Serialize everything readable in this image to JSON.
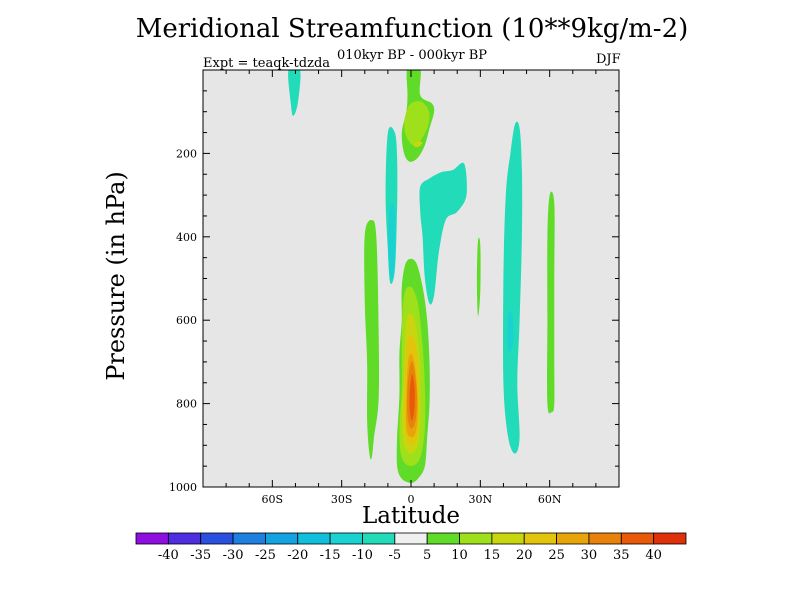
{
  "chart_data": {
    "type": "heatmap",
    "title": "Meridional Streamfunction (10**9kg/m-2)",
    "subtitle": "010kyr BP - 000kyr BP",
    "experiment_label": "Expt = teaqk-tdzda",
    "season_label": "DJF",
    "xlabel": "Latitude",
    "ylabel": "Pressure (in hPa)",
    "xlim": [
      -90,
      90
    ],
    "ylim": [
      1000,
      0
    ],
    "x_ticks": [
      {
        "value": -60,
        "label": "60S"
      },
      {
        "value": -30,
        "label": "30S"
      },
      {
        "value": 0,
        "label": "0"
      },
      {
        "value": 30,
        "label": "30N"
      },
      {
        "value": 60,
        "label": "60N"
      }
    ],
    "y_ticks": [
      {
        "value": 200,
        "label": "200"
      },
      {
        "value": 400,
        "label": "400"
      },
      {
        "value": 600,
        "label": "600"
      },
      {
        "value": 800,
        "label": "800"
      },
      {
        "value": 1000,
        "label": "1000"
      }
    ],
    "background_color": "#e6e6e6",
    "colorbar": {
      "colors": [
        "#8e0fe0",
        "#4e2ee0",
        "#2a50e0",
        "#1f7fe0",
        "#13a3e0",
        "#0fbfdc",
        "#1ad2d2",
        "#22dbb8",
        "#f0f0f0",
        "#5fdb28",
        "#9ee019",
        "#c8d60f",
        "#e2c40a",
        "#e8a50a",
        "#e8820a",
        "#e85a0a",
        "#e0300a"
      ],
      "labels": [
        "-40",
        "-35",
        "-30",
        "-25",
        "-20",
        "-15",
        "-10",
        "-5",
        "5",
        "10",
        "15",
        "20",
        "25",
        "30",
        "35",
        "40"
      ]
    },
    "contours": [
      {
        "value": -5,
        "label": "upper polar cell",
        "points": [
          [
            -53,
            0
          ],
          [
            -48,
            0
          ],
          [
            -49,
            80
          ],
          [
            -51,
            110
          ],
          [
            -52,
            80
          ]
        ]
      },
      {
        "value": 5,
        "label": "upper tropical plume",
        "points": [
          [
            -1.5,
            -5
          ],
          [
            4,
            -5
          ],
          [
            4,
            60
          ],
          [
            9,
            80
          ],
          [
            10,
            100
          ],
          [
            8,
            140
          ],
          [
            6,
            180
          ],
          [
            3,
            210
          ],
          [
            -0.5,
            220
          ],
          [
            -3,
            200
          ],
          [
            -4,
            150
          ],
          [
            -2,
            100
          ],
          [
            -1.5,
            60
          ]
        ]
      },
      {
        "value": 10,
        "label": "upper tropical core",
        "points": [
          [
            -2,
            100
          ],
          [
            0,
            80
          ],
          [
            4,
            75
          ],
          [
            7,
            90
          ],
          [
            8,
            110
          ],
          [
            7,
            140
          ],
          [
            4,
            170
          ],
          [
            1,
            180
          ],
          [
            -2,
            160
          ],
          [
            -3,
            130
          ]
        ]
      },
      {
        "value": 15,
        "label": "upper tropical max",
        "points": [
          [
            1,
            180
          ],
          [
            3,
            170
          ],
          [
            5,
            175
          ],
          [
            3,
            185
          ]
        ]
      },
      {
        "value": -5,
        "label": "southern tropical cell",
        "points": [
          [
            -10,
            150
          ],
          [
            -7,
            150
          ],
          [
            -6,
            210
          ],
          [
            -6,
            330
          ],
          [
            -7,
            480
          ],
          [
            -9,
            510
          ],
          [
            -10,
            430
          ],
          [
            -11,
            300
          ]
        ]
      },
      {
        "value": -10,
        "label": "southern tropical core",
        "points": [
          [
            -9,
            330
          ],
          [
            -7,
            340
          ],
          [
            -7,
            470
          ],
          [
            -9,
            500
          ],
          [
            -10,
            420
          ]
        ]
      },
      {
        "value": 5,
        "label": "southern flank",
        "points": [
          [
            -20,
            395
          ],
          [
            -17,
            360
          ],
          [
            -15,
            400
          ],
          [
            -14,
            620
          ],
          [
            -14,
            790
          ],
          [
            -16,
            880
          ],
          [
            -17,
            930
          ],
          [
            -18,
            920
          ],
          [
            -19,
            840
          ],
          [
            -19,
            700
          ],
          [
            -20,
            560
          ]
        ]
      },
      {
        "value": -5,
        "label": "northern tropical cell",
        "points": [
          [
            4,
            280
          ],
          [
            8,
            260
          ],
          [
            13,
            245
          ],
          [
            18,
            240
          ],
          [
            23,
            225
          ],
          [
            24,
            300
          ],
          [
            20,
            340
          ],
          [
            15,
            360
          ],
          [
            12,
            440
          ],
          [
            10,
            540
          ],
          [
            8,
            560
          ],
          [
            6,
            500
          ],
          [
            5,
            400
          ],
          [
            4,
            340
          ]
        ]
      },
      {
        "value": 5,
        "label": "lower tropical plume",
        "points": [
          [
            -4,
            520
          ],
          [
            -2,
            460
          ],
          [
            2,
            460
          ],
          [
            5,
            520
          ],
          [
            7,
            600
          ],
          [
            8,
            700
          ],
          [
            8,
            800
          ],
          [
            7,
            880
          ],
          [
            6,
            950
          ],
          [
            3,
            980
          ],
          [
            0,
            990
          ],
          [
            -4,
            980
          ],
          [
            -6,
            950
          ],
          [
            -6,
            880
          ],
          [
            -5,
            780
          ],
          [
            -5,
            680
          ],
          [
            -4,
            600
          ]
        ]
      },
      {
        "value": 10,
        "label": "lower tropical core 10",
        "points": [
          [
            -3,
            540
          ],
          [
            0,
            520
          ],
          [
            3,
            560
          ],
          [
            5,
            660
          ],
          [
            6,
            760
          ],
          [
            6,
            860
          ],
          [
            4,
            930
          ],
          [
            0,
            950
          ],
          [
            -4,
            930
          ],
          [
            -5,
            860
          ],
          [
            -4,
            760
          ],
          [
            -4,
            640
          ]
        ]
      },
      {
        "value": 15,
        "label": "lower tropical core 15",
        "points": [
          [
            -2,
            600
          ],
          [
            1,
            590
          ],
          [
            3,
            650
          ],
          [
            4,
            740
          ],
          [
            4,
            840
          ],
          [
            3,
            900
          ],
          [
            0,
            920
          ],
          [
            -3,
            900
          ],
          [
            -4,
            830
          ],
          [
            -3,
            720
          ]
        ]
      },
      {
        "value": 20,
        "label": "lower tropical core 20",
        "points": [
          [
            -1.5,
            650
          ],
          [
            1,
            640
          ],
          [
            3,
            700
          ],
          [
            3.5,
            800
          ],
          [
            3,
            870
          ],
          [
            0.5,
            900
          ],
          [
            -2,
            880
          ],
          [
            -3,
            800
          ],
          [
            -2.5,
            720
          ]
        ]
      },
      {
        "value": 25,
        "label": "lower tropical core 25",
        "points": [
          [
            -1,
            690
          ],
          [
            1,
            690
          ],
          [
            2.5,
            750
          ],
          [
            3,
            820
          ],
          [
            2,
            870
          ],
          [
            0,
            880
          ],
          [
            -2,
            860
          ],
          [
            -2,
            780
          ]
        ]
      },
      {
        "value": 30,
        "label": "lower tropical core 30",
        "points": [
          [
            0,
            700
          ],
          [
            1.5,
            720
          ],
          [
            2.5,
            780
          ],
          [
            2,
            840
          ],
          [
            0,
            860
          ],
          [
            -1.5,
            830
          ],
          [
            -1.5,
            760
          ]
        ]
      },
      {
        "value": 35,
        "label": "lower tropical max",
        "points": [
          [
            0.5,
            730
          ],
          [
            1.5,
            760
          ],
          [
            1.5,
            810
          ],
          [
            0.5,
            840
          ],
          [
            -0.5,
            820
          ],
          [
            -0.5,
            770
          ]
        ]
      },
      {
        "value": 5,
        "label": "30N sliver",
        "points": [
          [
            29,
            410
          ],
          [
            30,
            420
          ],
          [
            30,
            530
          ],
          [
            29,
            590
          ],
          [
            28.5,
            500
          ]
        ]
      },
      {
        "value": -5,
        "label": "northern midlatitude band",
        "points": [
          [
            45,
            130
          ],
          [
            47,
            140
          ],
          [
            48,
            240
          ],
          [
            48,
            400
          ],
          [
            47,
            600
          ],
          [
            46,
            750
          ],
          [
            47,
            880
          ],
          [
            45,
            920
          ],
          [
            42,
            880
          ],
          [
            40,
            750
          ],
          [
            40,
            500
          ],
          [
            41,
            300
          ],
          [
            43,
            200
          ]
        ]
      },
      {
        "value": -10,
        "label": "northern midlatitude core",
        "points": [
          [
            42,
            590
          ],
          [
            44,
            590
          ],
          [
            44,
            660
          ],
          [
            42,
            670
          ]
        ]
      },
      {
        "value": 5,
        "label": "northern high-latitude band",
        "points": [
          [
            60,
            300
          ],
          [
            62,
            320
          ],
          [
            62,
            500
          ],
          [
            62,
            700
          ],
          [
            62,
            800
          ],
          [
            61,
            820
          ],
          [
            59,
            800
          ],
          [
            59,
            600
          ],
          [
            59,
            400
          ]
        ]
      }
    ]
  }
}
